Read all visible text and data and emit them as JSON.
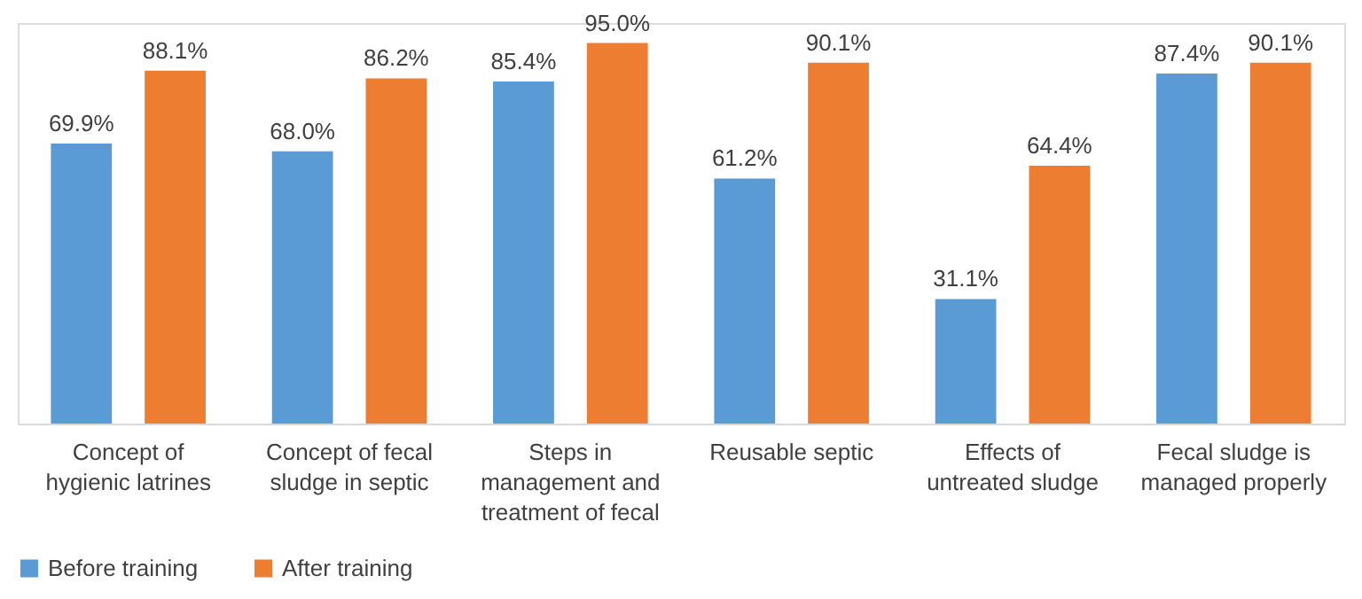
{
  "chart_data": {
    "type": "bar",
    "categories": [
      "Concept of hygienic latrines",
      "Concept of fecal sludge in septic",
      "Steps in management and treatment of fecal",
      "Reusable septic",
      "Effects of untreated sludge",
      "Fecal sludge is managed properly"
    ],
    "series": [
      {
        "name": "Before training",
        "color": "#5b9bd5",
        "values": [
          69.9,
          68.0,
          85.4,
          61.2,
          31.1,
          87.4
        ],
        "value_labels": [
          "69.9%",
          "68.0%",
          "85.4%",
          "61.2%",
          "31.1%",
          "87.4%"
        ]
      },
      {
        "name": "After training",
        "color": "#ed7d31",
        "values": [
          88.1,
          86.2,
          95.0,
          90.1,
          64.4,
          90.1
        ],
        "value_labels": [
          "88.1%",
          "86.2%",
          "95.0%",
          "90.1%",
          "64.4%",
          "90.1%"
        ]
      }
    ],
    "ylim": [
      0,
      100
    ],
    "tick_labels": "x",
    "grid": false,
    "legend": "bottom"
  }
}
